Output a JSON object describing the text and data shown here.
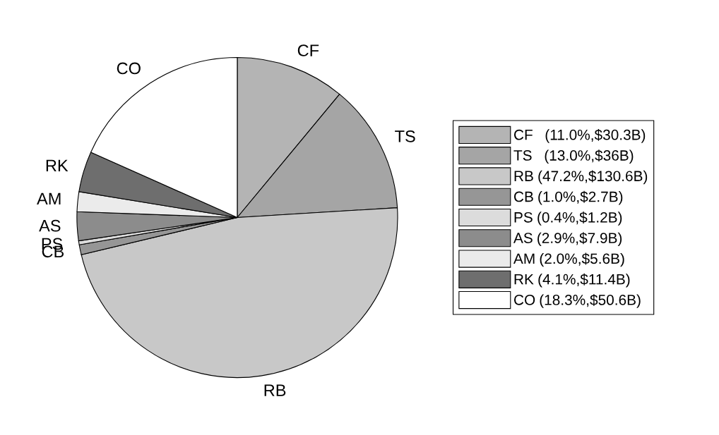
{
  "chart_data": {
    "type": "pie",
    "categories": [
      "CF",
      "TS",
      "RB",
      "CB",
      "PS",
      "AS",
      "AM",
      "RK",
      "CO"
    ],
    "values": [
      11.0,
      13.0,
      47.2,
      1.0,
      0.4,
      2.9,
      2.0,
      4.1,
      18.3
    ],
    "colors": [
      "#b4b4b4",
      "#a5a5a5",
      "#c8c8c8",
      "#969696",
      "#dcdcdc",
      "#8c8c8c",
      "#ebebeb",
      "#6e6e6e",
      "#ffffff"
    ],
    "value_labels": [
      "  (11.0%,$30.3B)",
      "  (13.0%,$36B)",
      "(47.2%,$130.6B)",
      "(1.0%,$2.7B)",
      "(0.4%,$1.2B)",
      "(2.9%,$7.9B)",
      "(2.0%,$5.6B)",
      "(4.1%,$11.4B)",
      "(18.3%,$50.6B)"
    ],
    "legend": "right"
  }
}
